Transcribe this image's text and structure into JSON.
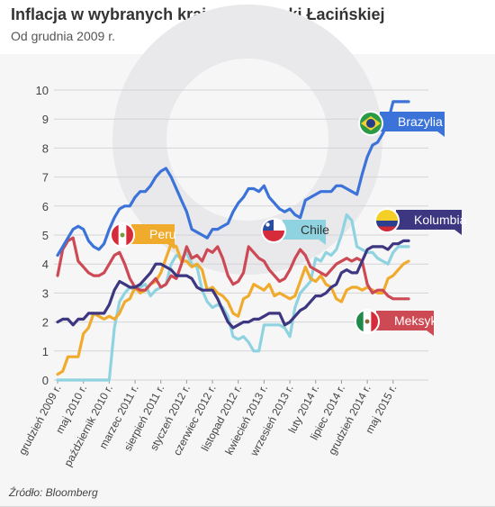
{
  "title": "Inflacja w wybranych krajach Ameryki Łacińskiej",
  "subtitle": "Od grudnia 2009 r.",
  "source": "Źródło: Bloomberg",
  "chart_data": {
    "type": "line",
    "title": "Inflacja w wybranych krajach Ameryki Łacińskiej",
    "subtitle": "Od grudnia 2009 r.",
    "xlabel": "",
    "ylabel": "",
    "ylim": [
      0,
      10
    ],
    "yticks": [
      0,
      1,
      2,
      3,
      4,
      5,
      6,
      7,
      8,
      9,
      10
    ],
    "grid": true,
    "x_start": "2009-12",
    "x_end": "2015-08",
    "x_tick_labels": [
      "grudzień 2009 r.",
      "maj 2010 r.",
      "październik 2010 r.",
      "marzec 2011 r.",
      "sierpień 2011 r.",
      "styczeń 2012 r.",
      "czerwiec 2012 r.",
      "listopad 2012 r.",
      "kwiecień 2013 r.",
      "wrzesień 2013 r.",
      "luty 2014 r.",
      "lipiec 2014 r.",
      "grudzień 2014 r.",
      "maj 2015 r."
    ],
    "series": [
      {
        "name": "Brazylia",
        "color": "#3b73d9",
        "flag": "brazil-flag",
        "values": [
          4.3,
          4.6,
          4.9,
          5.2,
          5.3,
          5.2,
          4.8,
          4.6,
          4.5,
          4.7,
          5.2,
          5.6,
          5.9,
          6.0,
          6.0,
          6.3,
          6.5,
          6.5,
          6.7,
          7.0,
          7.2,
          7.3,
          7.0,
          6.6,
          6.2,
          5.8,
          5.2,
          5.1,
          5.0,
          4.9,
          5.2,
          5.2,
          5.3,
          5.4,
          5.8,
          6.1,
          6.3,
          6.6,
          6.6,
          6.5,
          6.7,
          6.3,
          6.1,
          5.9,
          5.8,
          5.9,
          5.7,
          5.6,
          6.2,
          6.3,
          6.4,
          6.5,
          6.5,
          6.5,
          6.7,
          6.7,
          6.6,
          6.5,
          6.4,
          7.1,
          7.7,
          8.1,
          8.2,
          8.5,
          8.9,
          9.6,
          9.6,
          9.6,
          9.6
        ]
      },
      {
        "name": "Kolumbia",
        "color": "#3d3680",
        "flag": "colombia-flag",
        "values": [
          2.0,
          2.1,
          2.1,
          1.9,
          2.1,
          2.1,
          2.3,
          2.3,
          2.3,
          2.3,
          2.6,
          3.1,
          3.4,
          3.3,
          3.2,
          3.2,
          3.3,
          3.5,
          3.7,
          4.0,
          4.0,
          3.9,
          3.8,
          3.6,
          3.6,
          3.6,
          3.5,
          3.2,
          3.1,
          3.1,
          3.1,
          2.8,
          2.4,
          2.0,
          1.8,
          1.9,
          2.0,
          2.0,
          2.1,
          2.1,
          2.2,
          2.3,
          2.3,
          2.3,
          1.9,
          2.0,
          2.2,
          2.4,
          2.5,
          2.7,
          2.9,
          2.9,
          3.0,
          3.2,
          3.3,
          3.7,
          3.8,
          3.7,
          3.7,
          4.1,
          4.5,
          4.6,
          4.6,
          4.6,
          4.5,
          4.7,
          4.7,
          4.8,
          4.8
        ]
      },
      {
        "name": "Chile",
        "color": "#8fd3e0",
        "flag": "chile-flag",
        "values": [
          0.0,
          0.0,
          0.0,
          0.0,
          0.0,
          0.0,
          0.0,
          0.0,
          0.0,
          0.0,
          0.0,
          1.8,
          2.7,
          3.0,
          3.2,
          3.1,
          3.2,
          3.3,
          2.9,
          3.1,
          3.2,
          3.3,
          4.0,
          4.3,
          4.2,
          4.4,
          4.0,
          3.9,
          3.1,
          2.7,
          2.5,
          2.6,
          2.5,
          2.2,
          1.5,
          1.4,
          1.5,
          1.3,
          1.0,
          1.0,
          1.9,
          1.9,
          1.9,
          1.9,
          1.8,
          1.5,
          2.5,
          3.0,
          3.2,
          3.4,
          4.2,
          4.1,
          4.4,
          4.3,
          4.5,
          5.0,
          5.7,
          5.5,
          4.6,
          4.5,
          4.4,
          4.4,
          4.2,
          4.1,
          4.0,
          4.4,
          4.6,
          4.6,
          4.6
        ]
      },
      {
        "name": "Peru",
        "color": "#f0ab2d",
        "flag": "peru-flag",
        "values": [
          0.2,
          0.3,
          0.8,
          0.8,
          0.8,
          1.6,
          1.8,
          2.3,
          2.2,
          2.1,
          2.2,
          2.1,
          2.3,
          2.7,
          2.8,
          3.2,
          3.0,
          3.1,
          3.3,
          3.4,
          3.7,
          4.2,
          4.7,
          4.6,
          4.1,
          4.1,
          3.9,
          4.0,
          3.8,
          3.1,
          3.2,
          3.0,
          2.9,
          2.7,
          2.3,
          2.2,
          2.8,
          2.9,
          3.3,
          3.2,
          3.1,
          3.3,
          2.9,
          3.0,
          2.9,
          2.8,
          2.9,
          3.4,
          3.9,
          3.5,
          3.4,
          3.6,
          3.3,
          3.2,
          2.8,
          2.7,
          3.1,
          3.2,
          3.2,
          3.1,
          3.2,
          3.1,
          3.0,
          3.0,
          3.5,
          3.6,
          3.8,
          4.0,
          4.1
        ]
      },
      {
        "name": "Meksyk",
        "color": "#cd4a55",
        "flag": "mexico-flag",
        "values": [
          3.6,
          4.5,
          4.8,
          4.9,
          4.1,
          3.9,
          3.7,
          3.6,
          3.6,
          3.7,
          4.0,
          4.3,
          4.4,
          4.0,
          3.5,
          3.2,
          3.1,
          3.1,
          3.3,
          3.5,
          3.2,
          3.3,
          3.6,
          3.5,
          4.0,
          4.6,
          4.2,
          4.3,
          4.1,
          4.5,
          4.4,
          4.6,
          4.2,
          3.6,
          3.3,
          3.4,
          3.7,
          4.6,
          4.4,
          4.2,
          4.1,
          3.8,
          3.6,
          3.4,
          3.5,
          3.8,
          4.2,
          4.5,
          4.3,
          3.9,
          3.8,
          3.7,
          3.6,
          3.8,
          4.0,
          4.1,
          4.2,
          4.1,
          4.2,
          4.1,
          3.3,
          3.0,
          3.1,
          3.1,
          2.9,
          2.8,
          2.8,
          2.8,
          2.8
        ]
      }
    ],
    "legend_labels": [
      {
        "series": "Brazylia",
        "text": "Brazylia"
      },
      {
        "series": "Kolumbia",
        "text": "Kolumbia"
      },
      {
        "series": "Chile",
        "text": "Chile"
      },
      {
        "series": "Peru",
        "text": "Peru"
      },
      {
        "series": "Meksyk",
        "text": "Meksyk"
      }
    ]
  }
}
